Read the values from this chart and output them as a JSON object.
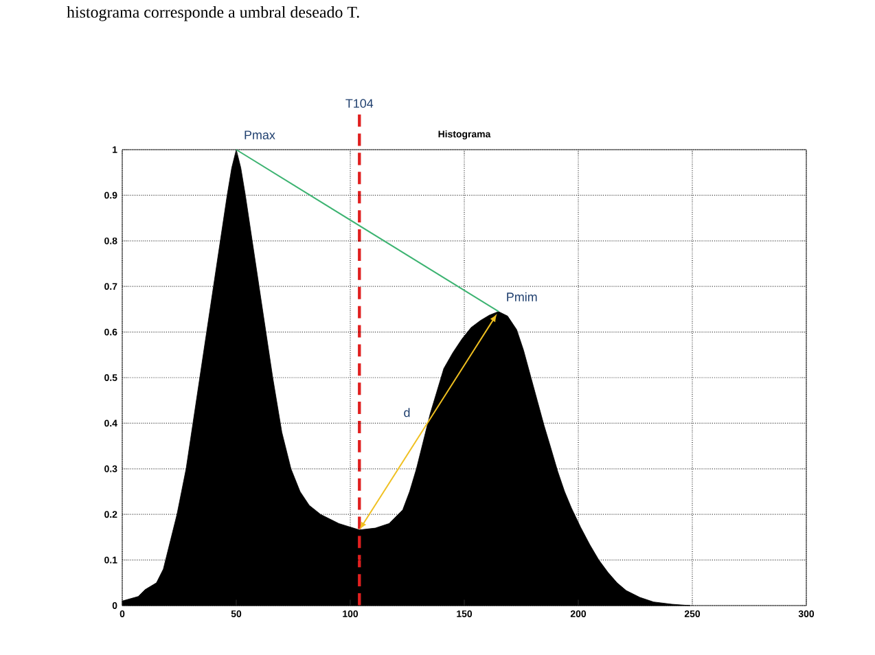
{
  "chart_data": {
    "type": "area",
    "title": "Histograma",
    "xlim": [
      0,
      300
    ],
    "ylim": [
      0,
      1
    ],
    "xticks": [
      0,
      50,
      100,
      150,
      200,
      250,
      300
    ],
    "yticks": [
      0,
      0.1,
      0.2,
      0.3,
      0.4,
      0.5,
      0.6,
      0.7,
      0.8,
      0.9,
      1
    ],
    "grid": true,
    "series": [
      {
        "color": "#000000",
        "x": [
          0,
          7,
          10,
          15,
          18,
          20,
          24,
          28,
          31,
          34,
          37,
          40,
          43,
          46,
          48,
          50,
          52,
          54,
          57,
          60,
          63,
          66,
          70,
          74,
          78,
          82,
          87,
          95,
          104,
          111,
          117,
          123,
          126,
          129,
          132,
          135,
          138,
          141,
          145,
          149,
          153,
          157,
          161,
          165,
          169,
          173,
          176,
          179,
          182,
          185,
          188,
          191,
          194,
          197,
          201,
          205,
          209,
          213,
          217,
          221,
          227,
          233,
          241,
          249
        ],
        "values": [
          0.01,
          0.02,
          0.035,
          0.05,
          0.08,
          0.12,
          0.2,
          0.3,
          0.4,
          0.5,
          0.6,
          0.7,
          0.8,
          0.9,
          0.96,
          1.0,
          0.96,
          0.9,
          0.8,
          0.7,
          0.6,
          0.5,
          0.38,
          0.3,
          0.25,
          0.22,
          0.2,
          0.18,
          0.166,
          0.17,
          0.18,
          0.21,
          0.25,
          0.3,
          0.36,
          0.42,
          0.47,
          0.52,
          0.555,
          0.585,
          0.61,
          0.625,
          0.637,
          0.645,
          0.635,
          0.605,
          0.56,
          0.505,
          0.45,
          0.395,
          0.345,
          0.294,
          0.25,
          0.214,
          0.172,
          0.134,
          0.1,
          0.073,
          0.05,
          0.033,
          0.018,
          0.008,
          0.003,
          0.0
        ]
      }
    ],
    "ref_lines": [
      {
        "axis": "x",
        "value": 104,
        "label": "T104",
        "color": "#e02020",
        "line_style": "dashed"
      }
    ],
    "annotations": [
      "histograma corresponde a umbral deseado T.",
      {
        "text": "Pmax",
        "x": 50,
        "y": 1.0
      },
      {
        "text": "Pmim",
        "x": 165,
        "y": 0.645
      },
      "d"
    ]
  }
}
